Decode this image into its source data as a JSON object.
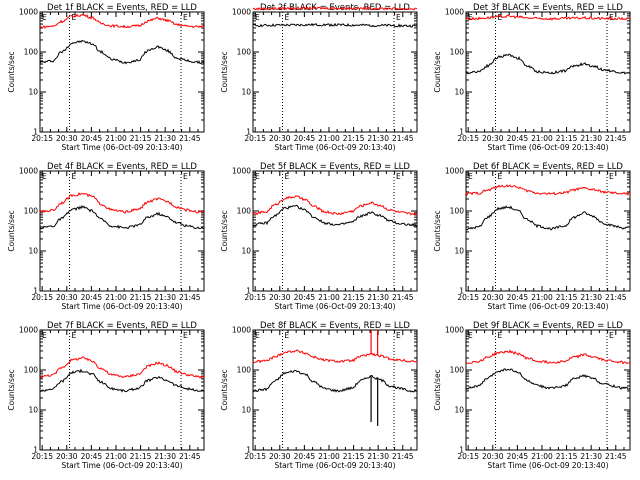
{
  "figure": {
    "x_tick_labels": [
      "20:15",
      "20:30",
      "20:45",
      "21:00",
      "21:15",
      "21:30",
      "21:45"
    ],
    "y_tick_labels": [
      "1",
      "10",
      "100",
      "1000"
    ],
    "ylabel": "Counts/sec",
    "xlabel": "Start Time (06-Oct-09 20:13:40)",
    "marker_labels": [
      "E",
      "E"
    ],
    "colors": {
      "events": "#000000",
      "lld": "#ff0000",
      "axes": "#000000",
      "background": "#ffffff"
    }
  },
  "chart_data": [
    {
      "type": "line",
      "title": "Det 1f BLACK = Events, RED = LLD",
      "xlabel": "Start Time (06-Oct-09 20:13:40)",
      "ylabel": "Counts/sec",
      "x_range_min": [
        0,
        100
      ],
      "ylim": [
        1,
        1000
      ],
      "y_scale": "log",
      "markers_min": [
        18,
        86
      ],
      "series": [
        {
          "name": "Events",
          "color": "#000000",
          "x_min": [
            0,
            8,
            13,
            20,
            26,
            32,
            37,
            44,
            52,
            60,
            66,
            72,
            77,
            84,
            90,
            96
          ],
          "values": [
            55,
            60,
            100,
            170,
            185,
            160,
            100,
            65,
            55,
            62,
            110,
            135,
            110,
            70,
            60,
            55
          ]
        },
        {
          "name": "LLD",
          "color": "#ff0000",
          "x_min": [
            0,
            8,
            13,
            20,
            26,
            32,
            37,
            44,
            52,
            60,
            66,
            72,
            77,
            84,
            90,
            96
          ],
          "values": [
            420,
            440,
            580,
            790,
            840,
            720,
            520,
            450,
            430,
            450,
            600,
            700,
            620,
            480,
            440,
            430
          ]
        }
      ]
    },
    {
      "type": "line",
      "title": "Det 2f BLACK = Events, RED = LLD",
      "xlabel": "Start Time (06-Oct-09 20:13:40)",
      "ylabel": "Counts/sec",
      "x_range_min": [
        0,
        100
      ],
      "ylim": [
        1,
        1000
      ],
      "y_scale": "log",
      "markers_min": [
        18,
        86
      ],
      "series": [
        {
          "name": "Events",
          "color": "#000000",
          "x_min": [
            0,
            20,
            40,
            60,
            80,
            96
          ],
          "values": [
            460,
            470,
            480,
            470,
            460,
            450
          ]
        },
        {
          "name": "LLD",
          "color": "#ff0000",
          "x_min": [
            0,
            20,
            40,
            60,
            80,
            96
          ],
          "values": [
            1200,
            1230,
            1250,
            1240,
            1220,
            1200
          ]
        }
      ]
    },
    {
      "type": "line",
      "title": "Det 3f BLACK = Events, RED = LLD",
      "xlabel": "Start Time (06-Oct-09 20:13:40)",
      "ylabel": "Counts/sec",
      "x_range_min": [
        0,
        100
      ],
      "ylim": [
        1,
        1000
      ],
      "y_scale": "log",
      "markers_min": [
        18,
        86
      ],
      "series": [
        {
          "name": "Events",
          "color": "#000000",
          "x_min": [
            0,
            8,
            13,
            20,
            26,
            32,
            37,
            44,
            52,
            60,
            66,
            72,
            77,
            84,
            90,
            96
          ],
          "values": [
            30,
            33,
            45,
            75,
            85,
            70,
            45,
            32,
            30,
            34,
            45,
            50,
            45,
            36,
            33,
            30
          ]
        },
        {
          "name": "LLD",
          "color": "#ff0000",
          "x_min": [
            0,
            8,
            13,
            20,
            26,
            32,
            37,
            44,
            52,
            60,
            66,
            72,
            77,
            84,
            90,
            96
          ],
          "values": [
            680,
            690,
            720,
            760,
            780,
            750,
            710,
            690,
            680,
            690,
            700,
            710,
            700,
            690,
            680,
            680
          ]
        }
      ]
    },
    {
      "type": "line",
      "title": "Det 4f BLACK = Events, RED = LLD",
      "xlabel": "Start Time (06-Oct-09 20:13:40)",
      "ylabel": "Counts/sec",
      "x_range_min": [
        0,
        100
      ],
      "ylim": [
        1,
        1000
      ],
      "y_scale": "log",
      "markers_min": [
        18,
        86
      ],
      "series": [
        {
          "name": "Events",
          "color": "#000000",
          "x_min": [
            0,
            8,
            13,
            20,
            26,
            32,
            37,
            44,
            52,
            60,
            66,
            72,
            77,
            84,
            90,
            96
          ],
          "values": [
            38,
            42,
            65,
            110,
            125,
            100,
            62,
            42,
            38,
            44,
            70,
            85,
            72,
            50,
            42,
            38
          ]
        },
        {
          "name": "LLD",
          "color": "#ff0000",
          "x_min": [
            0,
            8,
            13,
            20,
            26,
            32,
            37,
            44,
            52,
            60,
            66,
            72,
            77,
            84,
            90,
            96
          ],
          "values": [
            95,
            105,
            160,
            250,
            270,
            230,
            150,
            105,
            95,
            110,
            170,
            200,
            175,
            125,
            105,
            95
          ]
        }
      ]
    },
    {
      "type": "line",
      "title": "Det 5f BLACK = Events, RED = LLD",
      "xlabel": "Start Time (06-Oct-09 20:13:40)",
      "ylabel": "Counts/sec",
      "x_range_min": [
        0,
        100
      ],
      "ylim": [
        1,
        1000
      ],
      "y_scale": "log",
      "markers_min": [
        18,
        86
      ],
      "series": [
        {
          "name": "Events",
          "color": "#000000",
          "x_min": [
            0,
            8,
            13,
            20,
            26,
            32,
            37,
            44,
            52,
            60,
            66,
            72,
            77,
            84,
            90,
            96
          ],
          "values": [
            45,
            50,
            75,
            120,
            130,
            105,
            70,
            50,
            45,
            52,
            75,
            90,
            78,
            55,
            48,
            45
          ]
        },
        {
          "name": "LLD",
          "color": "#ff0000",
          "x_min": [
            0,
            8,
            13,
            20,
            26,
            32,
            37,
            44,
            52,
            60,
            66,
            72,
            77,
            84,
            90,
            96
          ],
          "values": [
            85,
            95,
            140,
            210,
            230,
            190,
            130,
            95,
            85,
            98,
            135,
            160,
            140,
            105,
            92,
            85
          ]
        }
      ]
    },
    {
      "type": "line",
      "title": "Det 6f BLACK = Events, RED = LLD",
      "xlabel": "Start Time (06-Oct-09 20:13:40)",
      "ylabel": "Counts/sec",
      "x_range_min": [
        0,
        100
      ],
      "ylim": [
        1,
        1000
      ],
      "y_scale": "log",
      "markers_min": [
        18,
        86
      ],
      "series": [
        {
          "name": "Events",
          "color": "#000000",
          "x_min": [
            0,
            8,
            13,
            20,
            26,
            32,
            37,
            44,
            52,
            60,
            66,
            72,
            77,
            84,
            90,
            96
          ],
          "values": [
            35,
            40,
            70,
            115,
            125,
            100,
            62,
            42,
            36,
            42,
            70,
            90,
            75,
            50,
            42,
            38
          ]
        },
        {
          "name": "LLD",
          "color": "#ff0000",
          "x_min": [
            0,
            8,
            13,
            20,
            26,
            32,
            37,
            44,
            52,
            60,
            66,
            72,
            77,
            84,
            90,
            96
          ],
          "values": [
            270,
            280,
            330,
            410,
            430,
            390,
            320,
            280,
            270,
            285,
            340,
            370,
            345,
            300,
            280,
            270
          ]
        }
      ]
    },
    {
      "type": "line",
      "title": "Det 7f BLACK = Events, RED = LLD",
      "xlabel": "Start Time (06-Oct-09 20:13:40)",
      "ylabel": "Counts/sec",
      "x_range_min": [
        0,
        100
      ],
      "ylim": [
        1,
        1000
      ],
      "y_scale": "log",
      "markers_min": [
        18,
        86
      ],
      "series": [
        {
          "name": "Events",
          "color": "#000000",
          "x_min": [
            0,
            8,
            13,
            20,
            26,
            32,
            37,
            44,
            52,
            60,
            66,
            72,
            77,
            84,
            90,
            96
          ],
          "values": [
            30,
            34,
            52,
            88,
            95,
            78,
            50,
            34,
            30,
            35,
            55,
            65,
            56,
            40,
            34,
            30
          ]
        },
        {
          "name": "LLD",
          "color": "#ff0000",
          "x_min": [
            0,
            8,
            13,
            20,
            26,
            32,
            37,
            44,
            52,
            60,
            66,
            72,
            77,
            84,
            90,
            96
          ],
          "values": [
            68,
            75,
            115,
            180,
            200,
            165,
            110,
            75,
            68,
            78,
            125,
            150,
            130,
            90,
            76,
            68
          ]
        }
      ]
    },
    {
      "type": "line",
      "title": "Det 8f BLACK = Events, RED = LLD",
      "xlabel": "Start Time (06-Oct-09 20:13:40)",
      "ylabel": "Counts/sec",
      "x_range_min": [
        0,
        100
      ],
      "ylim": [
        1,
        1000
      ],
      "y_scale": "log",
      "markers_min": [
        18,
        86
      ],
      "series": [
        {
          "name": "Events",
          "color": "#000000",
          "x_min": [
            0,
            8,
            13,
            20,
            26,
            32,
            37,
            44,
            52,
            60,
            66,
            72,
            77,
            84,
            90,
            96
          ],
          "values": [
            30,
            33,
            52,
            85,
            95,
            78,
            50,
            34,
            30,
            35,
            55,
            70,
            58,
            40,
            34,
            30
          ]
        },
        {
          "name": "LLD",
          "color": "#ff0000",
          "x_min": [
            0,
            8,
            13,
            20,
            26,
            32,
            37,
            44,
            52,
            60,
            66,
            72,
            77,
            84,
            90,
            96
          ],
          "values": [
            160,
            170,
            210,
            280,
            300,
            265,
            210,
            175,
            165,
            170,
            220,
            250,
            225,
            190,
            175,
            165
          ]
        }
      ],
      "spikes": [
        {
          "x_min": 72,
          "color": "#ff0000",
          "from": 250,
          "to": 1000
        },
        {
          "x_min": 76,
          "color": "#ff0000",
          "from": 230,
          "to": 1000
        },
        {
          "x_min": 72,
          "color": "#000000",
          "from": 70,
          "to": 5
        },
        {
          "x_min": 76,
          "color": "#000000",
          "from": 65,
          "to": 4
        }
      ]
    },
    {
      "type": "line",
      "title": "Det 9f BLACK = Events, RED = LLD",
      "xlabel": "Start Time (06-Oct-09 20:13:40)",
      "ylabel": "Counts/sec",
      "x_range_min": [
        0,
        100
      ],
      "ylim": [
        1,
        1000
      ],
      "y_scale": "log",
      "markers_min": [
        18,
        86
      ],
      "series": [
        {
          "name": "Events",
          "color": "#000000",
          "x_min": [
            0,
            8,
            13,
            20,
            26,
            32,
            37,
            44,
            52,
            60,
            66,
            72,
            77,
            84,
            90,
            96
          ],
          "values": [
            35,
            40,
            62,
            95,
            105,
            85,
            55,
            40,
            35,
            40,
            60,
            72,
            62,
            45,
            40,
            35
          ]
        },
        {
          "name": "LLD",
          "color": "#ff0000",
          "x_min": [
            0,
            8,
            13,
            20,
            26,
            32,
            37,
            44,
            52,
            60,
            66,
            72,
            77,
            84,
            90,
            96
          ],
          "values": [
            150,
            165,
            210,
            270,
            290,
            255,
            200,
            165,
            155,
            165,
            210,
            240,
            215,
            180,
            165,
            155
          ]
        }
      ]
    }
  ]
}
